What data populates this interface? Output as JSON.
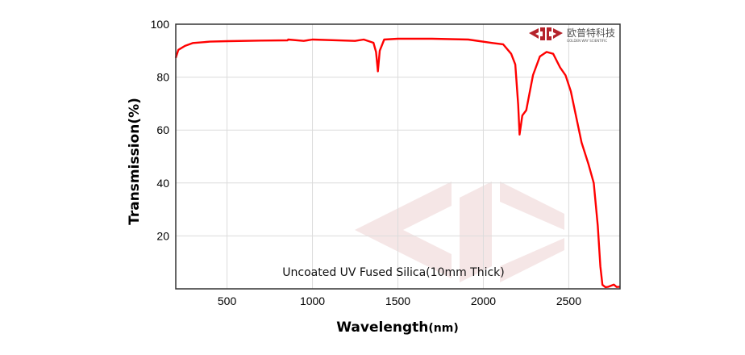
{
  "chart_data": {
    "type": "line",
    "title": "",
    "xlabel": "Wavelength",
    "xlabel_unit": "(nm)",
    "ylabel": "Transmission(%)",
    "xlim": [
      200,
      2800
    ],
    "ylim": [
      0,
      100
    ],
    "xticks": [
      500,
      1000,
      1500,
      2000,
      2500
    ],
    "yticks": [
      20,
      40,
      60,
      80,
      100
    ],
    "grid": true,
    "annotation": "Uncoated UV Fused Silica(10mm Thick)",
    "series": [
      {
        "color": "#ff0000",
        "x": [
          197,
          215,
          254,
          301,
          400,
          506,
          700,
          854,
          858,
          949,
          1000,
          1249,
          1300,
          1357,
          1372,
          1383,
          1394,
          1420,
          1500,
          1700,
          1912,
          2054,
          2116,
          2163,
          2187,
          2204,
          2212,
          2228,
          2251,
          2291,
          2331,
          2370,
          2409,
          2449,
          2481,
          2512,
          2575,
          2615,
          2646,
          2670,
          2685,
          2697,
          2715,
          2732,
          2764,
          2780,
          2800
        ],
        "y": [
          87.3,
          90.3,
          91.8,
          92.9,
          93.4,
          93.6,
          93.8,
          93.9,
          94.2,
          93.7,
          94.2,
          93.7,
          94.2,
          93.0,
          89.5,
          82.2,
          90.0,
          94.2,
          94.5,
          94.5,
          94.2,
          92.9,
          92.4,
          88.8,
          84.8,
          69.5,
          58.3,
          65.5,
          67.5,
          80.8,
          87.8,
          89.5,
          88.8,
          83.7,
          80.7,
          74.6,
          55.3,
          47.2,
          40.0,
          23.8,
          8.5,
          1.5,
          0.6,
          0.8,
          1.6,
          0.7,
          0.8
        ]
      }
    ]
  },
  "logo": {
    "name_cn": "欧普特科技",
    "name_en": "GOLDEN WAY SCIENTIFIC",
    "color": "#b5232b"
  }
}
